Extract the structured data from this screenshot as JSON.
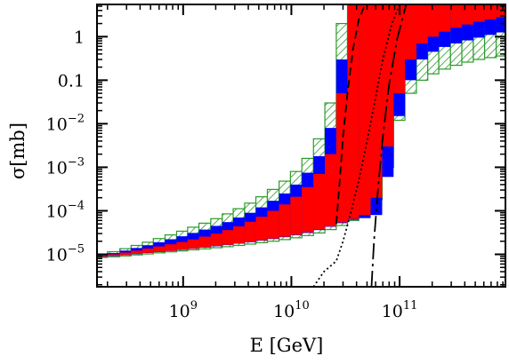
{
  "chart_data": {
    "type": "area",
    "title": "",
    "xlabel": "E [GeV]",
    "ylabel": "σ[mb]",
    "x_scale": "log",
    "y_scale": "log",
    "xlim": [
      160000000.0,
      950000000000.0
    ],
    "ylim": [
      1.8e-06,
      5.5
    ],
    "x_ticks": [
      {
        "value": 1000000000.0,
        "label": "10",
        "exp": "9"
      },
      {
        "value": 10000000000.0,
        "label": "10",
        "exp": "10"
      },
      {
        "value": 100000000000.0,
        "label": "10",
        "exp": "11"
      }
    ],
    "y_ticks": [
      {
        "value": 1e-05,
        "label": "10",
        "exp": "−5"
      },
      {
        "value": 0.0001,
        "label": "10",
        "exp": "−4"
      },
      {
        "value": 0.001,
        "label": "10",
        "exp": "−3"
      },
      {
        "value": 0.01,
        "label": "10",
        "exp": "−2"
      },
      {
        "value": 0.1,
        "label": "0.1",
        "exp": ""
      },
      {
        "value": 1,
        "label": "1",
        "exp": ""
      }
    ],
    "grid": false,
    "legend": "none",
    "colors": {
      "hatched_band": "#2a9a2a",
      "blue_band": "#0000ff",
      "red_band": "#ff0000",
      "curves": "#000000"
    },
    "series": [
      {
        "style": "green-hatched-band",
        "x": [
          160000000.0,
          200000000.0,
          260000000.0,
          330000000.0,
          420000000.0,
          530000000.0,
          680000000.0,
          870000000.0,
          1100000000.0,
          1400000000.0,
          1800000000.0,
          2300000000.0,
          2900000000.0,
          3700000000.0,
          4700000000.0,
          6000000000.0,
          7700000000.0,
          9800000000.0,
          12500000000.0,
          16000000000.0,
          20400000000.0,
          26000000000.0,
          33000000000.0,
          42000000000.0,
          54000000000.0,
          69000000000.0,
          88000000000.0,
          112000000000.0,
          143000000000.0,
          182000000000.0,
          230000000000.0,
          295000000000.0,
          376000000000.0,
          480000000000.0,
          610000000000.0,
          780000000000.0,
          950000000000.0
        ],
        "low": [
          8.5e-06,
          8.8e-06,
          9.2e-06,
          9.7e-06,
          1.02e-05,
          1.08e-05,
          1.14e-05,
          1.2e-05,
          1.27e-05,
          1.34e-05,
          1.42e-05,
          1.5e-05,
          1.6e-05,
          1.72e-05,
          1.85e-05,
          2e-05,
          2.18e-05,
          2.4e-05,
          2.7e-05,
          3.1e-05,
          3.7e-05,
          4.6e-05,
          6e-05,
          8.5e-05,
          0.00018,
          0.001,
          0.012,
          0.05,
          0.1,
          0.14,
          0.18,
          0.22,
          0.26,
          0.3,
          0.33,
          0.36,
          0.38
        ],
        "high": [
          1e-05,
          1.15e-05,
          1.35e-05,
          1.6e-05,
          1.9e-05,
          2.3e-05,
          2.8e-05,
          3.4e-05,
          4.2e-05,
          5.2e-05,
          6.6e-05,
          8.5e-05,
          0.000112,
          0.00015,
          0.00021,
          0.00031,
          0.00048,
          0.0008,
          0.0016,
          0.0045,
          0.03,
          2,
          5.5,
          5.5,
          5.5,
          5.5,
          5.5,
          5.5,
          5.5,
          5.5,
          5.5,
          5.5,
          5.5,
          5.5,
          5.5,
          5.5,
          5.5
        ]
      },
      {
        "style": "blue-band",
        "x": [
          160000000.0,
          200000000.0,
          260000000.0,
          330000000.0,
          420000000.0,
          530000000.0,
          680000000.0,
          870000000.0,
          1100000000.0,
          1400000000.0,
          1800000000.0,
          2300000000.0,
          2900000000.0,
          3700000000.0,
          4700000000.0,
          6000000000.0,
          7700000000.0,
          9800000000.0,
          12500000000.0,
          16000000000.0,
          20400000000.0,
          26000000000.0,
          33000000000.0,
          42000000000.0,
          54000000000.0,
          69000000000.0,
          88000000000.0,
          112000000000.0,
          143000000000.0,
          182000000000.0,
          230000000000.0,
          295000000000.0,
          376000000000.0,
          480000000000.0,
          610000000000.0,
          780000000000.0,
          950000000000.0
        ],
        "low": [
          8.7e-06,
          9.1e-06,
          9.6e-06,
          1.01e-05,
          1.07e-05,
          1.13e-05,
          1.19e-05,
          1.26e-05,
          1.34e-05,
          1.43e-05,
          1.53e-05,
          1.64e-05,
          1.76e-05,
          1.9e-05,
          2.06e-05,
          2.25e-05,
          2.48e-05,
          2.75e-05,
          3.1e-05,
          3.6e-05,
          4.3e-05,
          5.2e-05,
          6.2e-05,
          6.8e-05,
          8e-05,
          0.0006,
          0.015,
          0.1,
          0.3,
          0.45,
          0.58,
          0.7,
          0.82,
          0.95,
          1.1,
          1.25,
          1.4
        ],
        "high": [
          9.5e-06,
          1.07e-05,
          1.22e-05,
          1.4e-05,
          1.62e-05,
          1.9e-05,
          2.22e-05,
          2.6e-05,
          3.1e-05,
          3.7e-05,
          4.5e-05,
          5.5e-05,
          7e-05,
          9e-05,
          0.00012,
          0.00017,
          0.00025,
          0.0004,
          0.00075,
          0.0018,
          0.008,
          0.3,
          5.5,
          5.5,
          5.5,
          5.5,
          5.5,
          5.5,
          5.5,
          5.5,
          5.5,
          5.5,
          5.5,
          5.5,
          5.5,
          5.5,
          5.5
        ]
      },
      {
        "style": "red-band",
        "x": [
          160000000.0,
          200000000.0,
          260000000.0,
          330000000.0,
          420000000.0,
          530000000.0,
          680000000.0,
          870000000.0,
          1100000000.0,
          1400000000.0,
          1800000000.0,
          2300000000.0,
          2900000000.0,
          3700000000.0,
          4700000000.0,
          6000000000.0,
          7700000000.0,
          9800000000.0,
          12500000000.0,
          16000000000.0,
          20400000000.0,
          26000000000.0,
          33000000000.0,
          42000000000.0,
          54000000000.0,
          69000000000.0,
          88000000000.0,
          112000000000.0,
          143000000000.0,
          182000000000.0,
          230000000000.0,
          295000000000.0,
          376000000000.0,
          480000000000.0,
          610000000000.0,
          780000000000.0,
          950000000000.0
        ],
        "low": [
          8.8e-06,
          9.2e-06,
          9.7e-06,
          1.02e-05,
          1.08e-05,
          1.14e-05,
          1.2e-05,
          1.28e-05,
          1.36e-05,
          1.45e-05,
          1.55e-05,
          1.66e-05,
          1.79e-05,
          1.94e-05,
          2.1e-05,
          2.3e-05,
          2.53e-05,
          2.8e-05,
          3.2e-05,
          3.7e-05,
          4.4e-05,
          5.4e-05,
          6.5e-05,
          8e-05,
          0.0002,
          0.003,
          0.05,
          0.3,
          0.7,
          1,
          1.3,
          1.6,
          1.9,
          2.2,
          2.5,
          2.8,
          3.1
        ],
        "high": [
          9.2e-06,
          1e-05,
          1.1e-05,
          1.22e-05,
          1.36e-05,
          1.52e-05,
          1.7e-05,
          1.92e-05,
          2.2e-05,
          2.55e-05,
          3e-05,
          3.6e-05,
          4.4e-05,
          5.6e-05,
          7.3e-05,
          0.0001,
          0.00014,
          0.00021,
          0.00035,
          0.0007,
          0.002,
          0.05,
          5.5,
          5.5,
          5.5,
          5.5,
          5.5,
          5.5,
          5.5,
          5.5,
          5.5,
          5.5,
          5.5,
          5.5,
          5.5,
          5.5,
          5.5
        ]
      },
      {
        "style": "dashed",
        "x": [
          26000000000.0,
          28000000000.0,
          30000000000.0,
          33000000000.0,
          37000000000.0,
          42000000000.0,
          48000000000.0
        ],
        "y": [
          5e-05,
          0.0005,
          0.005,
          0.05,
          0.5,
          2.5,
          5.5
        ]
      },
      {
        "style": "dotted",
        "x": [
          16000000000.0,
          20000000000.0,
          26000000000.0,
          30000000000.0,
          35000000000.0,
          42000000000.0,
          50000000000.0,
          60000000000.0,
          70000000000.0,
          85000000000.0,
          100000000000.0
        ],
        "y": [
          1.8e-06,
          4e-06,
          7e-06,
          2e-05,
          8e-05,
          0.0005,
          0.004,
          0.04,
          0.3,
          2,
          5.5
        ]
      },
      {
        "style": "long-dash-dot",
        "x": [
          55000000000.0,
          58000000000.0,
          63000000000.0,
          70000000000.0,
          80000000000.0,
          95000000000.0,
          115000000000.0
        ],
        "y": [
          1.8e-06,
          2e-05,
          0.0003,
          0.005,
          0.08,
          0.9,
          5.5
        ]
      }
    ]
  }
}
